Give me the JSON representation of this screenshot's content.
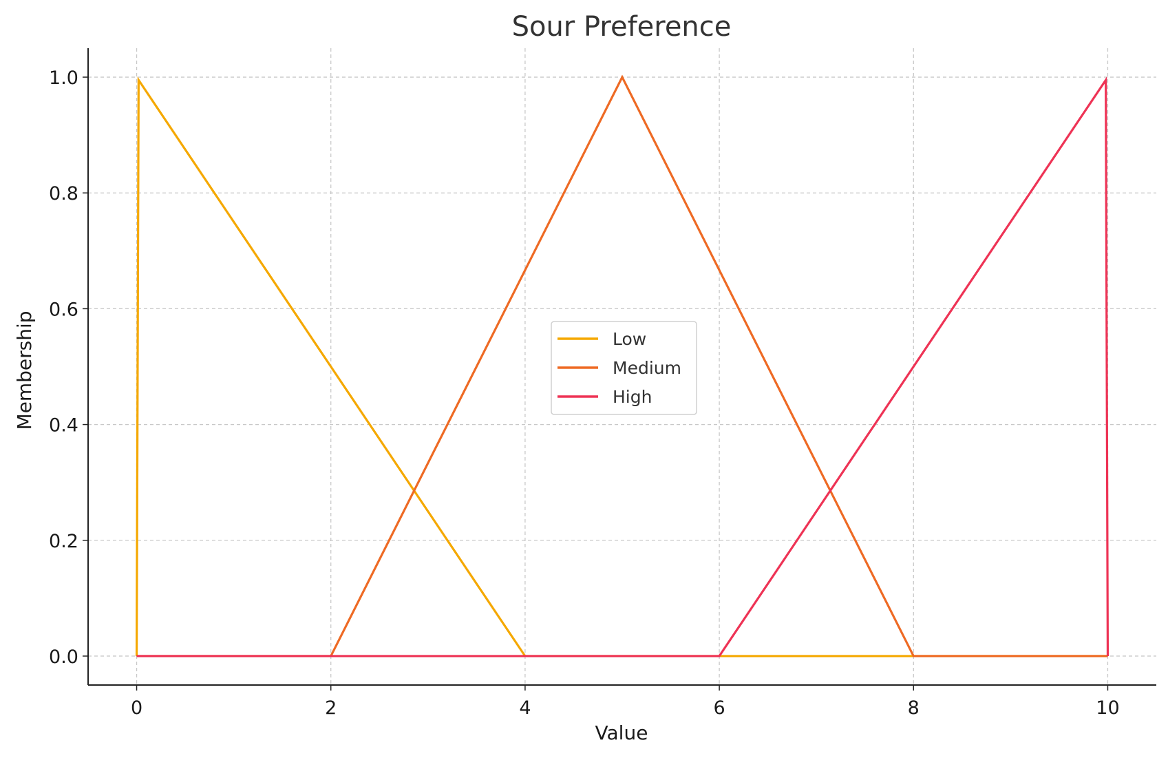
{
  "chart_data": {
    "type": "line",
    "title": "Sour Preference",
    "xlabel": "Value",
    "ylabel": "Membership",
    "xlim": [
      -0.5,
      10.5
    ],
    "ylim": [
      -0.05,
      1.05
    ],
    "xticks": [
      "0",
      "2",
      "4",
      "6",
      "8",
      "10"
    ],
    "yticks": [
      "0.0",
      "0.2",
      "0.4",
      "0.6",
      "0.8",
      "1.0"
    ],
    "grid": true,
    "legend_position": "center",
    "series": [
      {
        "name": "Low",
        "color": "#F5A800",
        "x": [
          0,
          0.02,
          4,
          10
        ],
        "y": [
          0,
          0.995,
          0,
          0
        ]
      },
      {
        "name": "Medium",
        "color": "#EE6A24",
        "x": [
          0,
          2,
          5,
          8,
          10
        ],
        "y": [
          0,
          0,
          1,
          0,
          0
        ]
      },
      {
        "name": "High",
        "color": "#EE3355",
        "x": [
          0,
          6,
          9.98,
          10
        ],
        "y": [
          0,
          0,
          0.995,
          0
        ]
      }
    ]
  }
}
